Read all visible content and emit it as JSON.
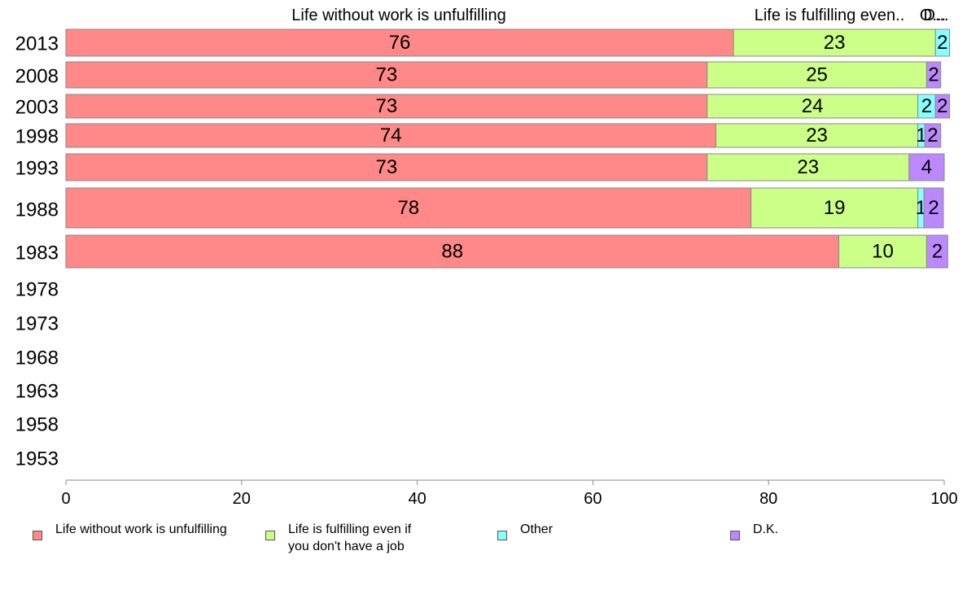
{
  "chart_data": {
    "type": "bar",
    "orientation": "horizontal",
    "stacked": true,
    "categories": [
      "2013",
      "2008",
      "2003",
      "1998",
      "1993",
      "1988",
      "1983",
      "1978",
      "1973",
      "1968",
      "1963",
      "1958",
      "1953"
    ],
    "series": [
      {
        "name": "Life without work is unfulfilling",
        "color": "#ff8888",
        "values": [
          76,
          73,
          73,
          74,
          73,
          78,
          88,
          null,
          null,
          null,
          null,
          null,
          null
        ],
        "labels": [
          "76",
          "73",
          "73",
          "74",
          "73",
          "78",
          "88",
          null,
          null,
          null,
          null,
          null,
          null
        ]
      },
      {
        "name": "Life is fulfilling even if you don't have a job",
        "color": "#ccff88",
        "values": [
          23,
          25,
          24,
          23,
          23,
          19,
          10,
          null,
          null,
          null,
          null,
          null,
          null
        ],
        "labels": [
          "23",
          "25",
          "24",
          "23",
          "23",
          "19",
          "10",
          null,
          null,
          null,
          null,
          null,
          null
        ]
      },
      {
        "name": "Other",
        "color": "#88ffff",
        "values": [
          1.6,
          0,
          2,
          0.8,
          0,
          0.7,
          0,
          null,
          null,
          null,
          null,
          null,
          null
        ],
        "labels": [
          "2",
          null,
          "2",
          "1",
          null,
          "1",
          null,
          null,
          null,
          null,
          null,
          null,
          null
        ]
      },
      {
        "name": "D.K.",
        "color": "#bb88ff",
        "values": [
          0,
          1.6,
          1.6,
          1.8,
          4,
          2.2,
          2.4,
          null,
          null,
          null,
          null,
          null,
          null
        ],
        "labels": [
          null,
          "2",
          "2",
          "2",
          "4",
          "2",
          "2",
          null,
          null,
          null,
          null,
          null,
          null
        ]
      }
    ],
    "top_labels": [
      "Life without work is unfulfilling",
      "Life is fulfilling even..",
      "O...",
      "D..."
    ],
    "x_ticks": [
      0,
      20,
      40,
      60,
      80,
      100
    ],
    "xlim": [
      0,
      100
    ],
    "grid": false,
    "legend_position": "bottom"
  },
  "legend": {
    "items": [
      {
        "label": "Life without work is unfulfilling",
        "color": "#ff8888"
      },
      {
        "label": "Life is fulfilling even if\nyou don't have a job",
        "color": "#ccff88"
      },
      {
        "label": "Other",
        "color": "#88ffff"
      },
      {
        "label": "D.K.",
        "color": "#bb88ff"
      }
    ]
  }
}
